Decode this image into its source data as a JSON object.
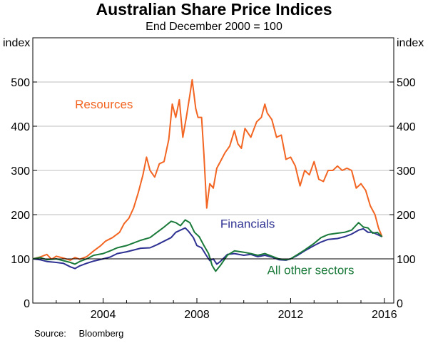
{
  "header": {
    "title": "Australian Share Price Indices",
    "subtitle": "End December 2000 = 100"
  },
  "footer": {
    "source_label": "Source:",
    "source_value": "Bloomberg"
  },
  "colors": {
    "resources": "#f26522",
    "financials": "#2e3192",
    "other": "#1a7a3a",
    "grid": "#bfbfbf",
    "baseline": "#000000"
  },
  "chart_data": {
    "type": "line",
    "title": "Australian Share Price Indices",
    "subtitle": "End December 2000 = 100",
    "ylabel_left": "index",
    "ylabel_right": "index",
    "xlim": [
      2001,
      2016.4
    ],
    "ylim": [
      0,
      600
    ],
    "xticks": [
      2004,
      2008,
      2012,
      2016
    ],
    "yticks": [
      0,
      100,
      200,
      300,
      400,
      500
    ],
    "xtick_labels": [
      "2004",
      "2008",
      "2012",
      "2016"
    ],
    "ytick_labels": [
      "0",
      "100",
      "200",
      "300",
      "400",
      "500"
    ],
    "reference_line": 100,
    "grid": true,
    "series": [
      {
        "name": "Resources",
        "label": "Resources",
        "color_key": "resources",
        "label_pos": [
          2002.8,
          440
        ],
        "points": [
          [
            2001.0,
            100
          ],
          [
            2001.3,
            104
          ],
          [
            2001.6,
            110
          ],
          [
            2001.8,
            99
          ],
          [
            2002.0,
            106
          ],
          [
            2002.3,
            102
          ],
          [
            2002.6,
            97
          ],
          [
            2002.8,
            103
          ],
          [
            2003.0,
            99
          ],
          [
            2003.3,
            105
          ],
          [
            2003.6,
            118
          ],
          [
            2003.9,
            130
          ],
          [
            2004.1,
            140
          ],
          [
            2004.4,
            148
          ],
          [
            2004.7,
            160
          ],
          [
            2004.9,
            180
          ],
          [
            2005.1,
            192
          ],
          [
            2005.3,
            215
          ],
          [
            2005.5,
            250
          ],
          [
            2005.7,
            290
          ],
          [
            2005.85,
            330
          ],
          [
            2006.0,
            300
          ],
          [
            2006.2,
            285
          ],
          [
            2006.4,
            315
          ],
          [
            2006.6,
            320
          ],
          [
            2006.8,
            370
          ],
          [
            2006.95,
            450
          ],
          [
            2007.1,
            420
          ],
          [
            2007.25,
            460
          ],
          [
            2007.4,
            375
          ],
          [
            2007.55,
            420
          ],
          [
            2007.7,
            470
          ],
          [
            2007.8,
            505
          ],
          [
            2007.95,
            440
          ],
          [
            2008.05,
            420
          ],
          [
            2008.2,
            420
          ],
          [
            2008.3,
            335
          ],
          [
            2008.42,
            215
          ],
          [
            2008.55,
            270
          ],
          [
            2008.7,
            260
          ],
          [
            2008.85,
            305
          ],
          [
            2009.0,
            320
          ],
          [
            2009.2,
            340
          ],
          [
            2009.4,
            355
          ],
          [
            2009.6,
            390
          ],
          [
            2009.75,
            360
          ],
          [
            2009.9,
            350
          ],
          [
            2010.05,
            395
          ],
          [
            2010.3,
            375
          ],
          [
            2010.55,
            410
          ],
          [
            2010.75,
            420
          ],
          [
            2010.9,
            450
          ],
          [
            2011.0,
            430
          ],
          [
            2011.2,
            415
          ],
          [
            2011.4,
            375
          ],
          [
            2011.6,
            380
          ],
          [
            2011.8,
            325
          ],
          [
            2012.0,
            330
          ],
          [
            2012.2,
            310
          ],
          [
            2012.4,
            265
          ],
          [
            2012.6,
            300
          ],
          [
            2012.8,
            290
          ],
          [
            2013.0,
            320
          ],
          [
            2013.2,
            280
          ],
          [
            2013.4,
            275
          ],
          [
            2013.6,
            300
          ],
          [
            2013.8,
            300
          ],
          [
            2014.0,
            310
          ],
          [
            2014.2,
            300
          ],
          [
            2014.4,
            305
          ],
          [
            2014.6,
            300
          ],
          [
            2014.8,
            260
          ],
          [
            2015.0,
            270
          ],
          [
            2015.2,
            255
          ],
          [
            2015.4,
            220
          ],
          [
            2015.6,
            200
          ],
          [
            2015.75,
            170
          ],
          [
            2015.9,
            150
          ]
        ]
      },
      {
        "name": "Financials",
        "label": "Financials",
        "color_key": "financials",
        "label_pos": [
          2009.0,
          170
        ],
        "points": [
          [
            2001.0,
            100
          ],
          [
            2001.3,
            98
          ],
          [
            2001.6,
            94
          ],
          [
            2002.0,
            92
          ],
          [
            2002.3,
            90
          ],
          [
            2002.6,
            82
          ],
          [
            2002.8,
            78
          ],
          [
            2003.0,
            84
          ],
          [
            2003.3,
            90
          ],
          [
            2003.6,
            95
          ],
          [
            2004.0,
            100
          ],
          [
            2004.3,
            104
          ],
          [
            2004.6,
            112
          ],
          [
            2005.0,
            116
          ],
          [
            2005.3,
            120
          ],
          [
            2005.6,
            124
          ],
          [
            2006.0,
            125
          ],
          [
            2006.3,
            132
          ],
          [
            2006.6,
            140
          ],
          [
            2006.9,
            148
          ],
          [
            2007.1,
            160
          ],
          [
            2007.3,
            165
          ],
          [
            2007.5,
            170
          ],
          [
            2007.65,
            162
          ],
          [
            2007.85,
            148
          ],
          [
            2008.0,
            130
          ],
          [
            2008.2,
            125
          ],
          [
            2008.4,
            108
          ],
          [
            2008.55,
            96
          ],
          [
            2008.7,
            100
          ],
          [
            2008.85,
            88
          ],
          [
            2009.0,
            94
          ],
          [
            2009.3,
            110
          ],
          [
            2009.6,
            112
          ],
          [
            2010.0,
            108
          ],
          [
            2010.3,
            110
          ],
          [
            2010.6,
            105
          ],
          [
            2010.9,
            108
          ],
          [
            2011.2,
            104
          ],
          [
            2011.5,
            98
          ],
          [
            2011.8,
            97
          ],
          [
            2012.0,
            100
          ],
          [
            2012.3,
            108
          ],
          [
            2012.6,
            118
          ],
          [
            2013.0,
            130
          ],
          [
            2013.3,
            138
          ],
          [
            2013.6,
            144
          ],
          [
            2014.0,
            146
          ],
          [
            2014.3,
            150
          ],
          [
            2014.6,
            156
          ],
          [
            2014.9,
            165
          ],
          [
            2015.1,
            168
          ],
          [
            2015.3,
            160
          ],
          [
            2015.5,
            160
          ],
          [
            2015.7,
            155
          ],
          [
            2015.9,
            150
          ]
        ]
      },
      {
        "name": "All other sectors",
        "label": "All other sectors",
        "color_key": "other",
        "label_pos": [
          2011.0,
          65
        ],
        "points": [
          [
            2001.0,
            100
          ],
          [
            2001.3,
            103
          ],
          [
            2001.6,
            98
          ],
          [
            2002.0,
            100
          ],
          [
            2002.3,
            96
          ],
          [
            2002.6,
            92
          ],
          [
            2002.8,
            88
          ],
          [
            2003.0,
            94
          ],
          [
            2003.3,
            100
          ],
          [
            2003.6,
            108
          ],
          [
            2004.0,
            112
          ],
          [
            2004.3,
            118
          ],
          [
            2004.6,
            125
          ],
          [
            2005.0,
            130
          ],
          [
            2005.3,
            136
          ],
          [
            2005.6,
            142
          ],
          [
            2006.0,
            148
          ],
          [
            2006.3,
            160
          ],
          [
            2006.6,
            172
          ],
          [
            2006.9,
            185
          ],
          [
            2007.1,
            182
          ],
          [
            2007.3,
            175
          ],
          [
            2007.5,
            188
          ],
          [
            2007.7,
            182
          ],
          [
            2007.9,
            160
          ],
          [
            2008.1,
            150
          ],
          [
            2008.3,
            130
          ],
          [
            2008.5,
            112
          ],
          [
            2008.65,
            85
          ],
          [
            2008.8,
            72
          ],
          [
            2009.0,
            85
          ],
          [
            2009.3,
            108
          ],
          [
            2009.6,
            118
          ],
          [
            2010.0,
            115
          ],
          [
            2010.3,
            112
          ],
          [
            2010.6,
            108
          ],
          [
            2010.9,
            112
          ],
          [
            2011.2,
            106
          ],
          [
            2011.5,
            100
          ],
          [
            2011.8,
            98
          ],
          [
            2012.0,
            100
          ],
          [
            2012.3,
            110
          ],
          [
            2012.6,
            120
          ],
          [
            2013.0,
            135
          ],
          [
            2013.3,
            148
          ],
          [
            2013.6,
            155
          ],
          [
            2014.0,
            158
          ],
          [
            2014.3,
            160
          ],
          [
            2014.6,
            165
          ],
          [
            2014.9,
            182
          ],
          [
            2015.1,
            172
          ],
          [
            2015.3,
            170
          ],
          [
            2015.5,
            158
          ],
          [
            2015.7,
            160
          ],
          [
            2015.9,
            150
          ]
        ]
      }
    ]
  }
}
